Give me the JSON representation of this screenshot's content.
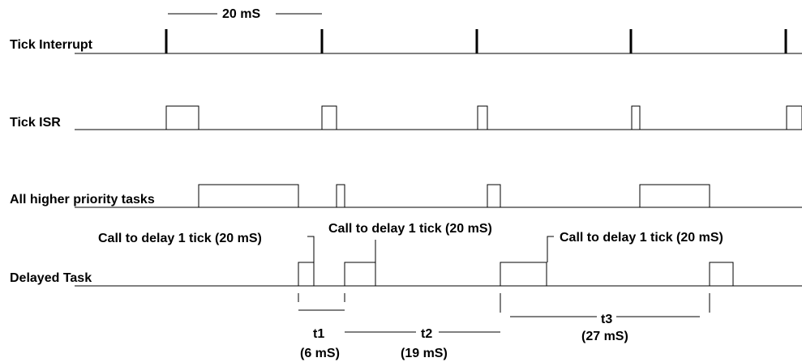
{
  "rows": {
    "tick_interrupt": "Tick Interrupt",
    "tick_isr": "Tick ISR",
    "higher_priority": "All higher priority tasks",
    "delayed_task": "Delayed Task"
  },
  "annotations": {
    "period": "20 mS",
    "call_1": "Call to delay 1 tick (20 mS)",
    "call_2": "Call to delay 1 tick (20 mS)",
    "call_3": "Call to delay 1 tick (20 mS)"
  },
  "intervals": {
    "t1": "t1",
    "t1_duration": "(6 mS)",
    "t2": "t2",
    "t2_duration": "(19 mS)",
    "t3": "t3",
    "t3_duration": "(27 mS)"
  }
}
